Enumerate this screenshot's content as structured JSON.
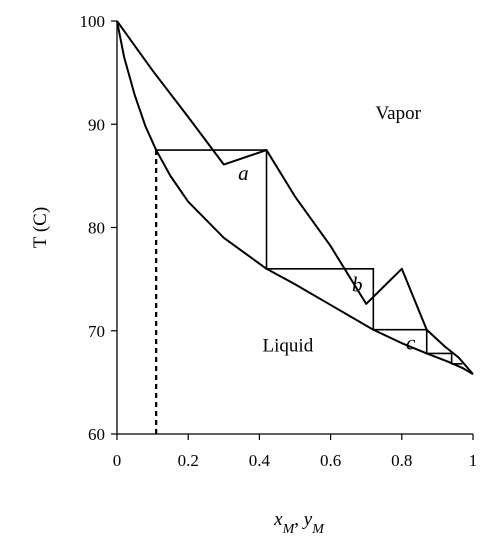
{
  "chart_data": {
    "type": "line",
    "title": "",
    "ylabel": "T (C)",
    "xlabel_parts": [
      {
        "text": "x",
        "italic": true
      },
      {
        "text": "M",
        "italic": true,
        "sub": true
      },
      {
        "text": ", ",
        "italic": false
      },
      {
        "text": "y",
        "italic": true
      },
      {
        "text": "M",
        "italic": true,
        "sub": true
      }
    ],
    "xlim": [
      0,
      1
    ],
    "ylim": [
      60,
      100
    ],
    "x_ticks": [
      0,
      0.2,
      0.4,
      0.6,
      0.8,
      1
    ],
    "x_tick_labels": [
      "0",
      "0.2",
      "0.4",
      "0.6",
      "0.8",
      "1"
    ],
    "y_ticks": [
      60,
      70,
      80,
      90,
      100
    ],
    "y_tick_labels": [
      "60",
      "70",
      "80",
      "90",
      "100"
    ],
    "grid": false,
    "series": [
      {
        "id": "vapor_curve",
        "x": [
          0,
          0.05,
          0.1,
          0.2,
          0.3,
          0.42,
          0.5,
          0.6,
          0.7,
          0.8,
          0.87,
          0.92,
          0.96,
          1.0
        ],
        "y": [
          100,
          97.6,
          95.2,
          90.7,
          86.1,
          87.5,
          83.0,
          78.2,
          72.6,
          76.0,
          70.1,
          68.5,
          67.4,
          65.8
        ]
      },
      {
        "id": "liquid_curve",
        "x": [
          0,
          0.02,
          0.05,
          0.08,
          0.11,
          0.15,
          0.2,
          0.3,
          0.42,
          0.5,
          0.6,
          0.72,
          0.8,
          0.87,
          0.93,
          0.97,
          1.0
        ],
        "y": [
          100,
          96.5,
          92.8,
          89.8,
          87.5,
          85.0,
          82.5,
          79.0,
          76.0,
          74.5,
          72.5,
          70.1,
          68.8,
          67.8,
          67.0,
          66.4,
          65.8
        ]
      }
    ],
    "steps": {
      "x": [
        0.11,
        0.42,
        0.42,
        0.72,
        0.72,
        0.87,
        0.87,
        0.94,
        0.94,
        0.97
      ],
      "y": [
        87.5,
        87.5,
        76.0,
        76.0,
        70.1,
        70.1,
        67.8,
        67.8,
        66.8,
        66.8
      ]
    },
    "dashed_line": {
      "x": 0.11,
      "y_from": 60,
      "y_to": 87.5
    },
    "annotations": [
      {
        "text": "Vapor",
        "x": 0.79,
        "y": 90.5,
        "style": "region"
      },
      {
        "text": "Liquid",
        "x": 0.48,
        "y": 68.0,
        "style": "region"
      },
      {
        "text": "a",
        "x": 0.355,
        "y": 84.6,
        "style": "step"
      },
      {
        "text": "b",
        "x": 0.675,
        "y": 73.8,
        "style": "step"
      },
      {
        "text": "c",
        "x": 0.825,
        "y": 68.2,
        "style": "step"
      }
    ]
  }
}
